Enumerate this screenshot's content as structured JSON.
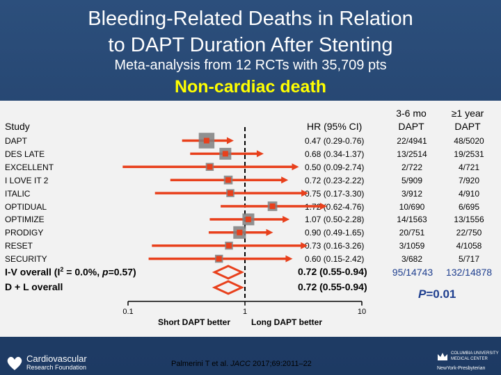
{
  "title_line1": "Bleeding-Related Deaths in Relation",
  "title_line2": "to DAPT Duration After Stenting",
  "subtitle": "Meta-analysis from 12 RCTs with 35,709 pts",
  "heading": "Non-cardiac death",
  "columns": {
    "study": "Study",
    "hr": "HR (95% CI)",
    "short_line1": "3-6 mo",
    "short_line2": "DAPT",
    "long_line1": "≥1 year",
    "long_line2": "DAPT"
  },
  "chart_data": {
    "type": "forest",
    "x_scale": "log",
    "xlim": [
      0.1,
      10
    ],
    "reference_line": 1,
    "ticks": [
      "0.1",
      "1",
      "10"
    ],
    "xlabel_left": "Short DAPT better",
    "xlabel_right": "Long DAPT better",
    "studies": [
      {
        "name": "DAPT",
        "hr": 0.47,
        "lo": 0.29,
        "hi": 0.76,
        "hr_text": "0.47 (0.29-0.76)",
        "short": "22/4941",
        "long": "48/5020",
        "weight": 3.0
      },
      {
        "name": "DES LATE",
        "hr": 0.68,
        "lo": 0.34,
        "hi": 1.37,
        "hr_text": "0.68 (0.34-1.37)",
        "short": "13/2514",
        "long": "19/2531",
        "weight": 2.0
      },
      {
        "name": "EXCELLENT",
        "hr": 0.5,
        "lo": 0.09,
        "hi": 2.74,
        "hr_text": "0.50 (0.09-2.74)",
        "short": "2/722",
        "long": "4/721",
        "weight": 1.0
      },
      {
        "name": "I LOVE IT 2",
        "hr": 0.72,
        "lo": 0.23,
        "hi": 2.22,
        "hr_text": "0.72 (0.23-2.22)",
        "short": "5/909",
        "long": "7/920",
        "weight": 1.2
      },
      {
        "name": "ITALIC",
        "hr": 0.75,
        "lo": 0.17,
        "hi": 3.3,
        "hr_text": "0.75 (0.17-3.30)",
        "short": "3/912",
        "long": "4/910",
        "weight": 1.0
      },
      {
        "name": "OPTIDUAL",
        "hr": 1.72,
        "lo": 0.62,
        "hi": 4.76,
        "hr_text": "1.72 (0.62-4.76)",
        "short": "10/690",
        "long": "6/695",
        "weight": 1.4
      },
      {
        "name": "OPTIMIZE",
        "hr": 1.07,
        "lo": 0.5,
        "hi": 2.28,
        "hr_text": "1.07 (0.50-2.28)",
        "short": "14/1563",
        "long": "13/1556",
        "weight": 2.0
      },
      {
        "name": "PRODIGY",
        "hr": 0.9,
        "lo": 0.49,
        "hi": 1.65,
        "hr_text": "0.90 (0.49-1.65)",
        "short": "20/751",
        "long": "22/750",
        "weight": 2.2
      },
      {
        "name": "RESET",
        "hr": 0.73,
        "lo": 0.16,
        "hi": 3.26,
        "hr_text": "0.73 (0.16-3.26)",
        "short": "3/1059",
        "long": "4/1058",
        "weight": 1.0
      },
      {
        "name": "SECURITY",
        "hr": 0.6,
        "lo": 0.15,
        "hi": 2.42,
        "hr_text": "0.60 (0.15-2.42)",
        "short": "3/682",
        "long": "5/717",
        "weight": 1.0
      }
    ],
    "overall": [
      {
        "label_prefix": "I-V overall (I",
        "label_sup": "2",
        "label_mid": " = 0.0%, ",
        "label_p": "p",
        "label_suffix": "=0.57)",
        "hr": 0.72,
        "lo": 0.55,
        "hi": 0.94,
        "hr_text": "0.72 (0.55-0.94)",
        "short": "95/14743",
        "long": "132/14878"
      },
      {
        "label": "D + L overall",
        "hr": 0.72,
        "lo": 0.55,
        "hi": 0.94,
        "hr_text": "0.72 (0.55-0.94)"
      }
    ],
    "p_label": "P",
    "p_value": "=0.01"
  },
  "citation_authors": "Palmerini T et al. ",
  "citation_journal": "JACC",
  "citation_rest": " 2017;69:2011–22",
  "logo_left_line1": "Cardiovascular",
  "logo_left_line2": "Research Foundation",
  "logo_right_line1": "Columbia University",
  "logo_right_line2": "Medical Center",
  "logo_right_line3": "NewYork-Presbyterian",
  "colors": {
    "ci_line": "#e8401c",
    "box": "#7f7f7f",
    "marker": "#e8401c",
    "diamond": "#e8401c",
    "axis": "#000000"
  }
}
